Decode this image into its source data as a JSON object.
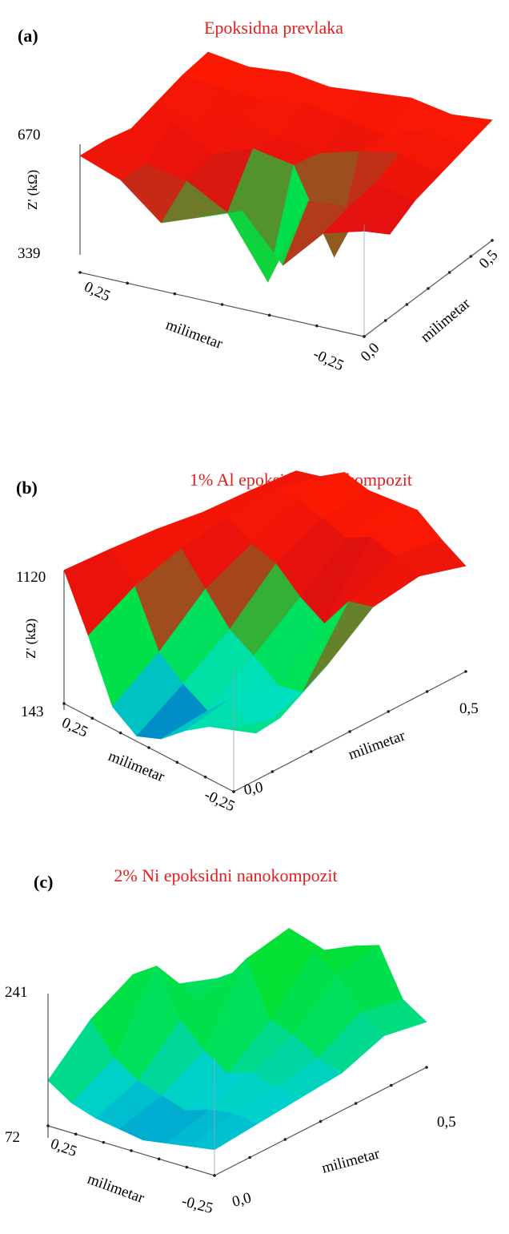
{
  "colors": {
    "title": "#e02020",
    "axis": "#555555"
  },
  "chart_data": [
    {
      "type": "surface",
      "panel": "(a)",
      "title": "Epoksidna prevlaka",
      "zlabel": "Z' (kΩ)",
      "zlim": [
        339,
        670
      ],
      "z_ticks": [
        "670",
        "339"
      ],
      "x_label": "milimetar",
      "x_ticks": [
        "0,25",
        "-0,25"
      ],
      "y_label": "milimetar",
      "y_ticks": [
        "0,0",
        "0,5"
      ],
      "colormap": [
        "#0030d0",
        "#00e0c0",
        "#00e040",
        "#e01010",
        "#ff1a00"
      ],
      "z": [
        [
          650,
          610,
          520,
          560,
          600,
          480,
          590,
          620
        ],
        [
          640,
          600,
          580,
          520,
          360,
          600,
          610,
          560
        ],
        [
          620,
          660,
          600,
          640,
          620,
          400,
          620,
          600
        ],
        [
          640,
          610,
          650,
          620,
          600,
          630,
          650,
          620
        ],
        [
          660,
          650,
          640,
          660,
          640,
          620,
          660,
          640
        ],
        [
          670,
          655,
          665,
          650,
          660,
          670,
          650,
          660
        ]
      ]
    },
    {
      "type": "surface",
      "panel": "(b)",
      "title": "1% Al epoksidni nanokompozit",
      "zlabel": "Z' (kΩ)",
      "zlim": [
        143,
        1120
      ],
      "z_ticks": [
        "1120",
        "143"
      ],
      "x_label": "milimetar",
      "x_ticks": [
        "0,25",
        "-0,25"
      ],
      "y_label": "milimetar",
      "y_ticks": [
        "0,0",
        "0,5"
      ],
      "colormap": [
        "#0030d0",
        "#00e0c0",
        "#00e040",
        "#e01010",
        "#ff1a00"
      ],
      "z": [
        [
          1100,
          720,
          300,
          180,
          250,
          400,
          520,
          600
        ],
        [
          1080,
          900,
          520,
          380,
          280,
          460,
          300,
          500
        ],
        [
          1050,
          1000,
          800,
          600,
          500,
          380,
          420,
          700
        ],
        [
          1000,
          1050,
          950,
          900,
          750,
          650,
          900,
          950
        ],
        [
          980,
          1080,
          1100,
          1050,
          1000,
          1100,
          1050,
          1000
        ],
        [
          950,
          1000,
          1120,
          1080,
          1100,
          1120,
          1000,
          900
        ]
      ]
    },
    {
      "type": "surface",
      "panel": "(c)",
      "title": "2% Ni epoksidni nanokompozit",
      "zlabel": "",
      "zlim": [
        72,
        241
      ],
      "z_ticks": [
        "241",
        "72"
      ],
      "x_label": "milimetar",
      "x_ticks": [
        "0,25",
        "-0,25"
      ],
      "y_label": "milimetar",
      "y_ticks": [
        "0,0",
        "0,5"
      ],
      "colormap": [
        "#0070d0",
        "#00d0d0",
        "#00e060",
        "#00e040",
        "#10e020"
      ],
      "z": [
        [
          130,
          110,
          100,
          95,
          90,
          95,
          100,
          105
        ],
        [
          180,
          140,
          120,
          110,
          100,
          110,
          115,
          110
        ],
        [
          210,
          230,
          170,
          140,
          120,
          130,
          120,
          115
        ],
        [
          170,
          160,
          190,
          230,
          160,
          150,
          130,
          120
        ],
        [
          150,
          170,
          180,
          241,
          220,
          200,
          160,
          140
        ],
        [
          140,
          150,
          160,
          180,
          200,
          210,
          150,
          130
        ]
      ]
    }
  ]
}
